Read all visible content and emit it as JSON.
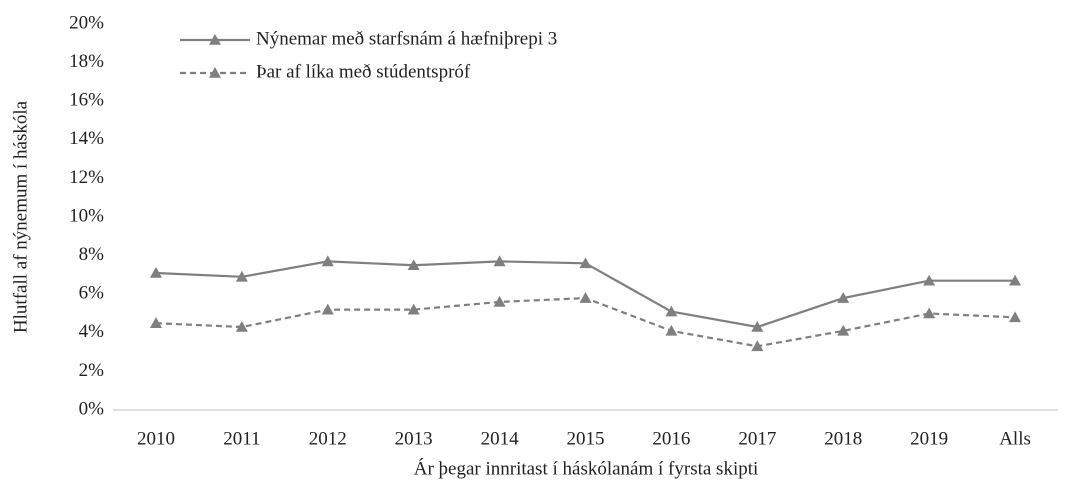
{
  "chart_data": {
    "type": "line",
    "ylabel": "Hlutfall af nýnemum í háskóla",
    "xlabel": "Ár þegar innritast í háskólanám í fyrsta skipti",
    "categories": [
      "2010",
      "2011",
      "2012",
      "2013",
      "2014",
      "2015",
      "2016",
      "2017",
      "2018",
      "2019",
      "Alls"
    ],
    "series": [
      {
        "name": "Nýnemar með starfsnám á hæfniþrepi 3",
        "color": "#7f7f7f",
        "linestyle": "solid",
        "values": [
          7.1,
          6.9,
          7.7,
          7.5,
          7.7,
          7.6,
          5.1,
          4.3,
          5.8,
          6.7,
          6.7
        ]
      },
      {
        "name": "Þar af líka með stúdentspróf",
        "color": "#7f7f7f",
        "linestyle": "dashed",
        "values": [
          4.5,
          4.3,
          5.2,
          5.2,
          5.6,
          5.8,
          4.1,
          3.3,
          4.1,
          5.0,
          4.8
        ]
      }
    ],
    "ylim": [
      0,
      20
    ],
    "yticks": [
      {
        "value": 0,
        "label": "0%"
      },
      {
        "value": 2,
        "label": "2%"
      },
      {
        "value": 4,
        "label": "4%"
      },
      {
        "value": 6,
        "label": "6%"
      },
      {
        "value": 8,
        "label": "8%"
      },
      {
        "value": 10,
        "label": "10%"
      },
      {
        "value": 12,
        "label": "12%"
      },
      {
        "value": 14,
        "label": "14%"
      },
      {
        "value": 16,
        "label": "16%"
      },
      {
        "value": 18,
        "label": "18%"
      },
      {
        "value": 20,
        "label": "20%"
      }
    ],
    "legend": "upper left",
    "grid": false
  }
}
